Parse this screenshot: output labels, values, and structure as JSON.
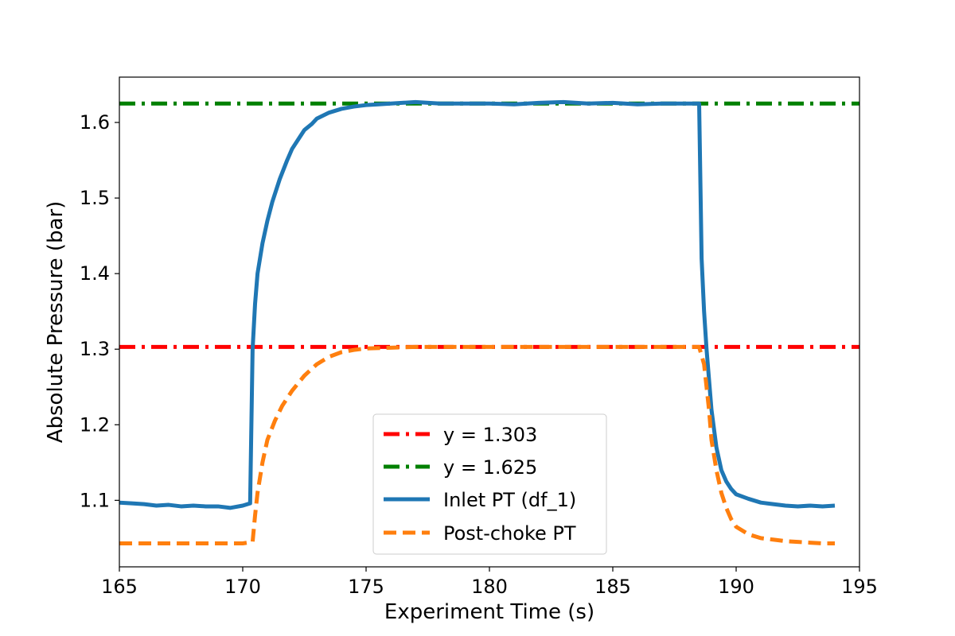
{
  "chart_data": {
    "type": "line",
    "title": "",
    "xlabel": "Experiment Time (s)",
    "ylabel": "Absolute Pressure (bar)",
    "xlim": [
      165,
      195
    ],
    "ylim": [
      1.012,
      1.66
    ],
    "xticks": [
      165,
      170,
      175,
      180,
      185,
      190,
      195
    ],
    "yticks": [
      1.1,
      1.2,
      1.3,
      1.4,
      1.5,
      1.6
    ],
    "grid": false,
    "legend_position": "lower-center",
    "series": [
      {
        "name": "y = 1.303",
        "style": "dashdot",
        "color": "#ff0000",
        "x": [
          165,
          195
        ],
        "y": [
          1.303,
          1.303
        ]
      },
      {
        "name": "y = 1.625",
        "style": "dashdot",
        "color": "#008000",
        "x": [
          165,
          195
        ],
        "y": [
          1.625,
          1.625
        ]
      },
      {
        "name": "Inlet PT (df_1)",
        "style": "solid",
        "color": "#1f77b4",
        "x": [
          165.0,
          165.5,
          166.0,
          166.5,
          167.0,
          167.5,
          168.0,
          168.5,
          169.0,
          169.5,
          170.0,
          170.3,
          170.4,
          170.5,
          170.6,
          170.8,
          171.0,
          171.2,
          171.5,
          171.8,
          172.0,
          172.3,
          172.5,
          172.8,
          173.0,
          173.5,
          174.0,
          174.5,
          175.0,
          175.5,
          176.0,
          177.0,
          178.0,
          179.0,
          180.0,
          181.0,
          182.0,
          183.0,
          184.0,
          185.0,
          186.0,
          187.0,
          188.0,
          188.5,
          188.6,
          188.7,
          188.8,
          189.0,
          189.2,
          189.4,
          189.6,
          189.8,
          190.0,
          190.5,
          191.0,
          191.5,
          192.0,
          192.5,
          193.0,
          193.5,
          194.0
        ],
        "y": [
          1.097,
          1.096,
          1.095,
          1.093,
          1.094,
          1.092,
          1.093,
          1.092,
          1.092,
          1.09,
          1.093,
          1.096,
          1.3,
          1.36,
          1.4,
          1.44,
          1.47,
          1.495,
          1.525,
          1.55,
          1.565,
          1.58,
          1.59,
          1.598,
          1.605,
          1.613,
          1.618,
          1.621,
          1.623,
          1.624,
          1.625,
          1.627,
          1.625,
          1.625,
          1.625,
          1.624,
          1.626,
          1.627,
          1.625,
          1.626,
          1.624,
          1.625,
          1.625,
          1.625,
          1.42,
          1.35,
          1.3,
          1.22,
          1.17,
          1.14,
          1.125,
          1.115,
          1.108,
          1.102,
          1.097,
          1.095,
          1.093,
          1.092,
          1.093,
          1.092,
          1.093
        ]
      },
      {
        "name": "Post-choke PT",
        "style": "dashed",
        "color": "#ff7f0e",
        "x": [
          165.0,
          166.0,
          167.0,
          168.0,
          169.0,
          170.0,
          170.4,
          170.5,
          170.6,
          170.8,
          171.0,
          171.3,
          171.6,
          172.0,
          172.5,
          173.0,
          173.5,
          174.0,
          174.5,
          175.0,
          176.0,
          177.0,
          178.0,
          180.0,
          182.0,
          184.0,
          186.0,
          188.0,
          188.5,
          188.7,
          188.9,
          189.0,
          189.2,
          189.4,
          189.6,
          189.8,
          190.0,
          190.5,
          191.0,
          191.5,
          192.0,
          192.5,
          193.0,
          193.5,
          194.0
        ],
        "y": [
          1.043,
          1.043,
          1.043,
          1.043,
          1.043,
          1.043,
          1.045,
          1.08,
          1.11,
          1.15,
          1.18,
          1.205,
          1.225,
          1.245,
          1.265,
          1.28,
          1.29,
          1.296,
          1.299,
          1.301,
          1.302,
          1.303,
          1.303,
          1.303,
          1.303,
          1.303,
          1.303,
          1.303,
          1.303,
          1.28,
          1.22,
          1.18,
          1.14,
          1.11,
          1.09,
          1.075,
          1.065,
          1.055,
          1.05,
          1.048,
          1.046,
          1.045,
          1.044,
          1.043,
          1.043
        ]
      }
    ]
  }
}
